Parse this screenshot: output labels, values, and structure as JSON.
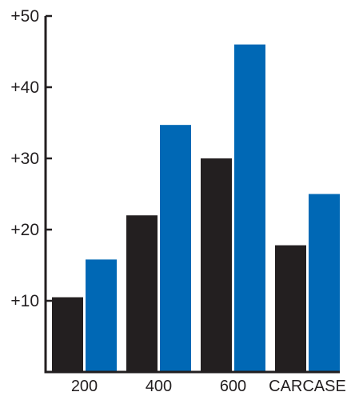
{
  "chart_data": {
    "type": "bar",
    "categories": [
      "200",
      "400",
      "600",
      "CARCASE"
    ],
    "series": [
      {
        "values": [
          10.5,
          22,
          30,
          17.8
        ],
        "color": "#231f20"
      },
      {
        "values": [
          15.8,
          34.7,
          46,
          25
        ],
        "color": "#0068b5"
      }
    ],
    "ylim": [
      0,
      50
    ],
    "yticks": [
      10,
      20,
      30,
      40,
      50
    ],
    "ytick_labels": [
      "+10",
      "+20",
      "+30",
      "+40",
      "+50"
    ],
    "title": "",
    "xlabel": "",
    "ylabel": "",
    "grid": false,
    "legend": "none",
    "axis_color": "#231f20"
  }
}
